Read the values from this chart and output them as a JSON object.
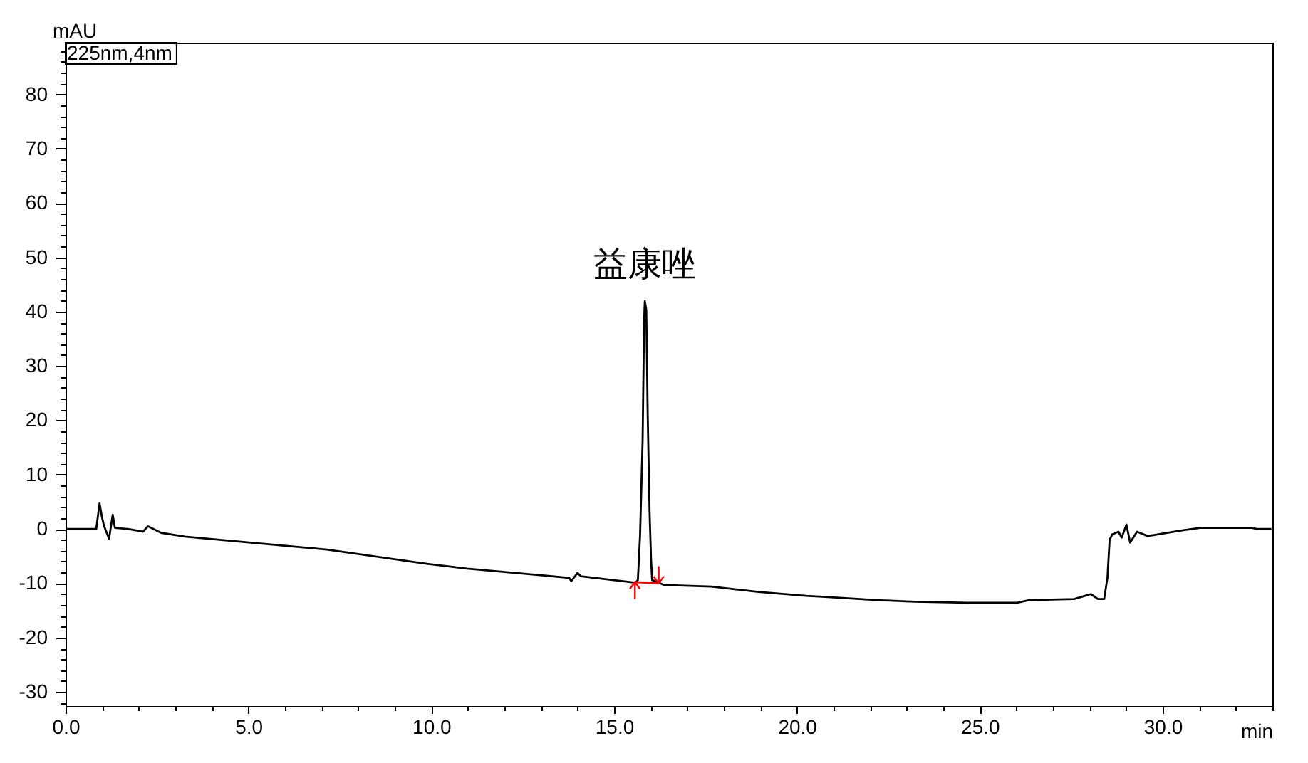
{
  "chart_data": {
    "type": "line",
    "xlabel": "min",
    "ylabel": "mAU",
    "annotations": [
      "225nm,4nm",
      {
        "text": "益康唑",
        "x": 15.84,
        "y": 41.9
      }
    ],
    "xlim": [
      0,
      33
    ],
    "ylim": [
      -32.6,
      89.5
    ],
    "xticks": [
      {
        "value": 0,
        "label": "0.0"
      },
      {
        "value": 1,
        "label": null
      },
      {
        "value": 2,
        "label": null
      },
      {
        "value": 3,
        "label": null
      },
      {
        "value": 4,
        "label": null
      },
      {
        "value": 5,
        "label": "5.0"
      },
      {
        "value": 6,
        "label": null
      },
      {
        "value": 7,
        "label": null
      },
      {
        "value": 8,
        "label": null
      },
      {
        "value": 9,
        "label": null
      },
      {
        "value": 10,
        "label": "10.0"
      },
      {
        "value": 11,
        "label": null
      },
      {
        "value": 12,
        "label": null
      },
      {
        "value": 13,
        "label": null
      },
      {
        "value": 14,
        "label": null
      },
      {
        "value": 15,
        "label": "15.0"
      },
      {
        "value": 16,
        "label": null
      },
      {
        "value": 17,
        "label": null
      },
      {
        "value": 18,
        "label": null
      },
      {
        "value": 19,
        "label": null
      },
      {
        "value": 20,
        "label": "20.0"
      },
      {
        "value": 21,
        "label": null
      },
      {
        "value": 22,
        "label": null
      },
      {
        "value": 23,
        "label": null
      },
      {
        "value": 24,
        "label": null
      },
      {
        "value": 25,
        "label": "25.0"
      },
      {
        "value": 26,
        "label": null
      },
      {
        "value": 27,
        "label": null
      },
      {
        "value": 28,
        "label": null
      },
      {
        "value": 29,
        "label": null
      },
      {
        "value": 30,
        "label": "30.0"
      },
      {
        "value": 31,
        "label": null
      },
      {
        "value": 32,
        "label": null
      },
      {
        "value": 33,
        "label": null
      }
    ],
    "yticks": [
      {
        "value": -32,
        "label": null
      },
      -30,
      {
        "value": -28,
        "label": null
      },
      {
        "value": -26,
        "label": null
      },
      {
        "value": -24,
        "label": null
      },
      {
        "value": -22,
        "label": null
      },
      -20,
      {
        "value": -18,
        "label": null
      },
      {
        "value": -16,
        "label": null
      },
      {
        "value": -14,
        "label": null
      },
      {
        "value": -12,
        "label": null
      },
      -10,
      {
        "value": -8,
        "label": null
      },
      {
        "value": -6,
        "label": null
      },
      {
        "value": -4,
        "label": null
      },
      {
        "value": -2,
        "label": null
      },
      0,
      {
        "value": 2,
        "label": null
      },
      {
        "value": 4,
        "label": null
      },
      {
        "value": 6,
        "label": null
      },
      {
        "value": 8,
        "label": null
      },
      10,
      {
        "value": 12,
        "label": null
      },
      {
        "value": 14,
        "label": null
      },
      {
        "value": 16,
        "label": null
      },
      {
        "value": 18,
        "label": null
      },
      20,
      {
        "value": 22,
        "label": null
      },
      {
        "value": 24,
        "label": null
      },
      {
        "value": 26,
        "label": null
      },
      {
        "value": 28,
        "label": null
      },
      30,
      {
        "value": 32,
        "label": null
      },
      {
        "value": 34,
        "label": null
      },
      {
        "value": 36,
        "label": null
      },
      {
        "value": 38,
        "label": null
      },
      40,
      {
        "value": 42,
        "label": null
      },
      {
        "value": 44,
        "label": null
      },
      {
        "value": 46,
        "label": null
      },
      {
        "value": 48,
        "label": null
      },
      50,
      {
        "value": 52,
        "label": null
      },
      {
        "value": 54,
        "label": null
      },
      {
        "value": 56,
        "label": null
      },
      {
        "value": 58,
        "label": null
      },
      60,
      {
        "value": 62,
        "label": null
      },
      {
        "value": 64,
        "label": null
      },
      {
        "value": 66,
        "label": null
      },
      {
        "value": 68,
        "label": null
      },
      70,
      {
        "value": 72,
        "label": null
      },
      {
        "value": 74,
        "label": null
      },
      {
        "value": 76,
        "label": null
      },
      {
        "value": 78,
        "label": null
      },
      80,
      {
        "value": 82,
        "label": null
      },
      {
        "value": 84,
        "label": null
      },
      {
        "value": 86,
        "label": null
      },
      {
        "value": 88,
        "label": null
      }
    ],
    "series": [
      {
        "color": "#000000",
        "x": [
          0,
          0.84,
          0.93,
          0.99,
          1.05,
          1.19,
          1.29,
          1.35,
          1.7,
          2.12,
          2.25,
          2.61,
          3.26,
          7.15,
          9.88,
          10.98,
          13.77,
          13.83,
          14.0,
          14.09,
          15.58,
          15.65,
          15.71,
          15.78,
          15.82,
          15.84,
          15.88,
          15.92,
          15.97,
          16.01,
          16.04,
          16.36,
          17.66,
          18.95,
          20.25,
          20.77,
          22.2,
          23.23,
          24.66,
          26.02,
          26.35,
          27.58,
          28.04,
          28.23,
          28.4,
          28.49,
          28.55,
          28.62,
          28.79,
          28.88,
          29.01,
          29.11,
          29.3,
          29.59,
          30.5,
          31.02,
          32.44,
          32.57,
          32.95
        ],
        "values": [
          0,
          0,
          4.7,
          2.4,
          0.6,
          -1.8,
          2.6,
          0.2,
          0,
          -0.5,
          0.5,
          -0.7,
          -1.4,
          -3.8,
          -6.4,
          -7.3,
          -9.0,
          -9.6,
          -8.1,
          -8.7,
          -9.9,
          -9.4,
          -1.2,
          16.3,
          38.1,
          41.9,
          40.3,
          20.7,
          3.2,
          -5.5,
          -9.4,
          -10.3,
          -10.6,
          -11.6,
          -12.3,
          -12.5,
          -13.1,
          -13.4,
          -13.6,
          -13.6,
          -13.1,
          -12.9,
          -12.0,
          -12.9,
          -12.9,
          -9.0,
          -2.0,
          -1.0,
          -0.5,
          -1.6,
          0.8,
          -2.5,
          -0.5,
          -1.3,
          -0.3,
          0.2,
          0.2,
          0,
          0
        ]
      },
      {
        "color": "#ff0000",
        "x": [
          15.57,
          16.22
        ],
        "values": [
          -9.8,
          -10.0
        ]
      }
    ]
  }
}
